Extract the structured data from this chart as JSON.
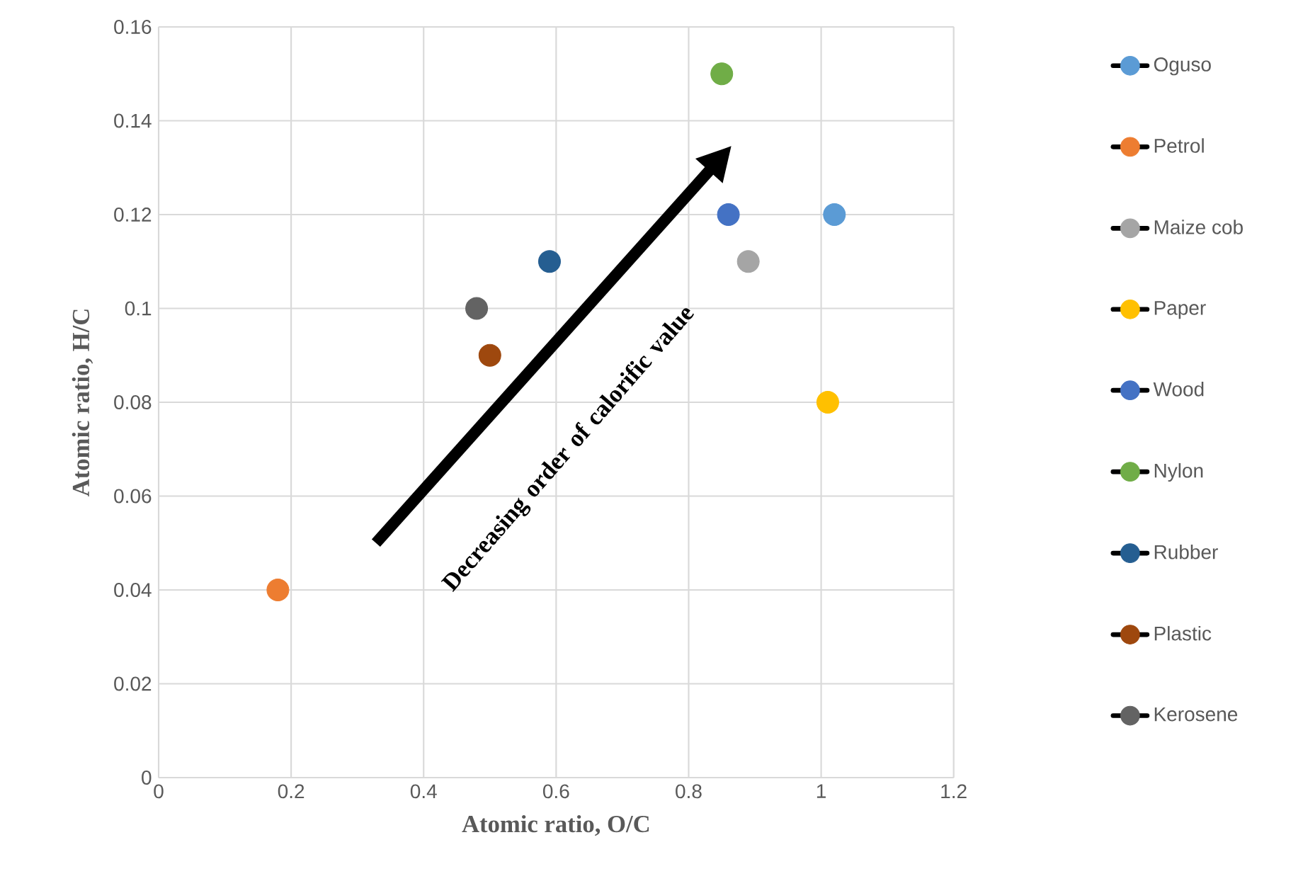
{
  "chart_data": {
    "type": "scatter",
    "xlabel": "Atomic ratio, O/C",
    "ylabel": "Atomic ratio, H/C",
    "xlim": [
      0,
      1.2
    ],
    "ylim": [
      0,
      0.16
    ],
    "xticks": [
      0,
      0.2,
      0.4,
      0.6,
      0.8,
      1,
      1.2
    ],
    "yticks": [
      0,
      0.02,
      0.04,
      0.06,
      0.08,
      0.1,
      0.12,
      0.14,
      0.16
    ],
    "grid": true,
    "legend": "right",
    "marker": "circle",
    "annotations": [
      {
        "text": "Decreasing order of calorific value"
      }
    ],
    "series": [
      {
        "name": "Oguso",
        "color": "#5b9bd5",
        "x": [
          1.02
        ],
        "values": [
          0.12
        ]
      },
      {
        "name": "Petrol",
        "color": "#ed7d31",
        "x": [
          0.18
        ],
        "values": [
          0.04
        ]
      },
      {
        "name": "Maize cob",
        "color": "#a5a5a5",
        "x": [
          0.89
        ],
        "values": [
          0.11
        ]
      },
      {
        "name": "Paper",
        "color": "#ffc000",
        "x": [
          1.01
        ],
        "values": [
          0.08
        ]
      },
      {
        "name": "Wood",
        "color": "#4472c4",
        "x": [
          0.86
        ],
        "values": [
          0.12
        ]
      },
      {
        "name": "Nylon",
        "color": "#70ad47",
        "x": [
          0.85
        ],
        "values": [
          0.15
        ]
      },
      {
        "name": "Rubber",
        "color": "#255e91",
        "x": [
          0.59
        ],
        "values": [
          0.11
        ]
      },
      {
        "name": "Plastic",
        "color": "#9e480e",
        "x": [
          0.5
        ],
        "values": [
          0.09
        ]
      },
      {
        "name": "Kerosene",
        "color": "#636363",
        "x": [
          0.48
        ],
        "values": [
          0.1
        ]
      }
    ]
  }
}
